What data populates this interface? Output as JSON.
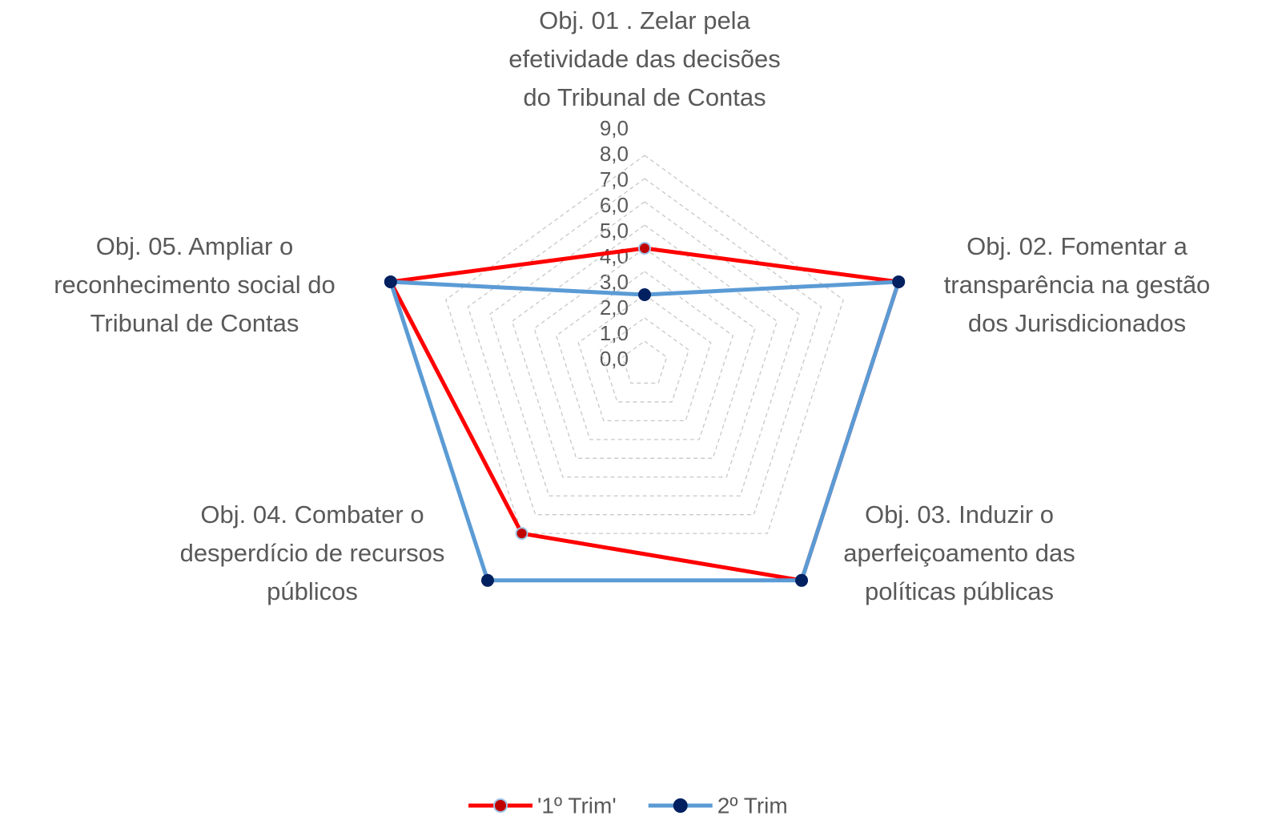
{
  "chart_data": {
    "type": "radar",
    "categories": [
      [
        "Obj. 01 . Zelar pela",
        "efetividade das decisões",
        "do Tribunal de Contas"
      ],
      [
        "Obj. 02. Fomentar a",
        "transparência na gestão",
        "dos Jurisdicionados"
      ],
      [
        "Obj. 03. Induzir o",
        "aperfeiçoamento das",
        "políticas públicas"
      ],
      [
        "Obj. 04.  Combater o",
        "desperdício de recursos",
        "públicos"
      ],
      [
        "Obj. 05.  Ampliar o",
        "reconhecimento social do",
        "Tribunal de Contas"
      ]
    ],
    "series": [
      {
        "name": "'1º Trim'",
        "color": "#ff0000",
        "marker_color": "#c00000",
        "values": [
          5,
          11.5,
          11.5,
          9,
          11.5
        ]
      },
      {
        "name": "2º Trim",
        "color": "#5b9bd5",
        "marker_color": "#002060",
        "values": [
          3,
          11.5,
          11.5,
          11.5,
          11.5
        ]
      }
    ],
    "yticks": [
      {
        "value": 0,
        "label": "0,0"
      },
      {
        "value": 1,
        "label": "1,0"
      },
      {
        "value": 2,
        "label": "2,0"
      },
      {
        "value": 3,
        "label": "3,0"
      },
      {
        "value": 4,
        "label": "4,0"
      },
      {
        "value": 5,
        "label": "5,0"
      },
      {
        "value": 6,
        "label": "6,0"
      },
      {
        "value": 7,
        "label": "7,0"
      },
      {
        "value": 8,
        "label": "8,0"
      },
      {
        "value": 9,
        "label": "9,0"
      }
    ],
    "grid": true
  }
}
